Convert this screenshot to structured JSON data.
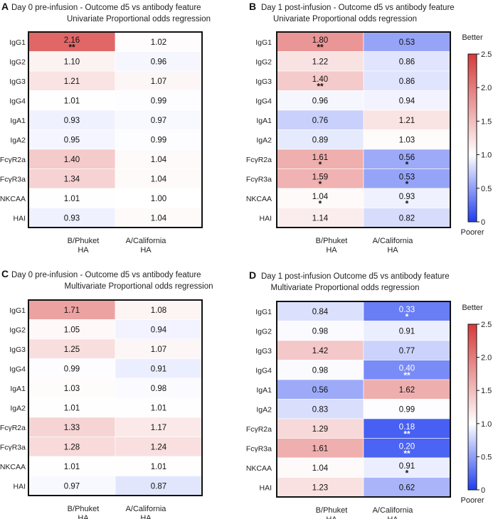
{
  "colors": {
    "low": "#1f3df0",
    "mid": "#ffffff",
    "high": "#d83a3a"
  },
  "chart_data": [
    {
      "type": "heatmap",
      "panel": "A",
      "title": "Day 0 pre-infusion - Outcome d5 vs antibody feature",
      "subtitle": "Univariate Proportional odds regression",
      "rows": [
        "IgG1",
        "IgG2",
        "IgG3",
        "IgG4",
        "IgA1",
        "IgA2",
        "FcγR2a",
        "FcγR3a",
        "NKCAA",
        "HAI"
      ],
      "columns": [
        "B/Phuket\nHA",
        "A/California\nHA"
      ],
      "values": [
        [
          2.16,
          1.02
        ],
        [
          1.1,
          0.96
        ],
        [
          1.21,
          1.07
        ],
        [
          1.01,
          0.99
        ],
        [
          0.93,
          0.97
        ],
        [
          0.95,
          0.99
        ],
        [
          1.4,
          1.04
        ],
        [
          1.34,
          1.04
        ],
        [
          1.01,
          1.0
        ],
        [
          0.93,
          1.04
        ]
      ],
      "value_labels": [
        [
          "2.16",
          "1.02"
        ],
        [
          "1.10",
          "0.96"
        ],
        [
          "1.21",
          "1.07"
        ],
        [
          "1.01",
          "0.99"
        ],
        [
          "0.93",
          "0.97"
        ],
        [
          "0.95",
          "0.99"
        ],
        [
          "1.40",
          "1.04"
        ],
        [
          "1.34",
          "1.04"
        ],
        [
          "1.01",
          "1.00"
        ],
        [
          "0.93",
          "1.04"
        ]
      ],
      "significance": [
        [
          "**",
          ""
        ],
        [
          "",
          ""
        ],
        [
          "",
          ""
        ],
        [
          "",
          ""
        ],
        [
          "",
          ""
        ],
        [
          "",
          ""
        ],
        [
          "",
          ""
        ],
        [
          "",
          ""
        ],
        [
          "",
          ""
        ],
        [
          "",
          ""
        ]
      ],
      "value_range": [
        0,
        2.5
      ]
    },
    {
      "type": "heatmap",
      "panel": "B",
      "title": "Day 1 post-infusion - Outcome d5 vs antibody feature",
      "subtitle": "Univariate Proportional odds regression",
      "rows": [
        "IgG1",
        "IgG2",
        "IgG3",
        "IgG4",
        "IgA1",
        "IgA2",
        "FcγR2a",
        "FcγR3a",
        "NKCAA",
        "HAI"
      ],
      "columns": [
        "B/Phuket\nHA",
        "A/California\nHA"
      ],
      "values": [
        [
          1.8,
          0.53
        ],
        [
          1.22,
          0.86
        ],
        [
          1.4,
          0.86
        ],
        [
          0.96,
          0.94
        ],
        [
          0.76,
          1.21
        ],
        [
          0.89,
          1.03
        ],
        [
          1.61,
          0.56
        ],
        [
          1.59,
          0.53
        ],
        [
          1.04,
          0.93
        ],
        [
          1.14,
          0.82
        ]
      ],
      "value_labels": [
        [
          "1.80",
          "0.53"
        ],
        [
          "1.22",
          "0.86"
        ],
        [
          "1.40",
          "0.86"
        ],
        [
          "0.96",
          "0.94"
        ],
        [
          "0.76",
          "1.21"
        ],
        [
          "0.89",
          "1.03"
        ],
        [
          "1.61",
          "0.56"
        ],
        [
          "1.59",
          "0.53"
        ],
        [
          "1.04",
          "0.93"
        ],
        [
          "1.14",
          "0.82"
        ]
      ],
      "significance": [
        [
          "**",
          ""
        ],
        [
          "",
          ""
        ],
        [
          "**",
          ""
        ],
        [
          "",
          ""
        ],
        [
          "",
          ""
        ],
        [
          "",
          ""
        ],
        [
          "*",
          "*"
        ],
        [
          "*",
          "*"
        ],
        [
          "*",
          "*"
        ],
        [
          "",
          ""
        ]
      ],
      "value_range": [
        0,
        2.5
      ]
    },
    {
      "type": "heatmap",
      "panel": "C",
      "title": "Day 0 pre-infusion - Outcome d5 vs antibody feature",
      "subtitle": "Multivariate Proportional odds regression",
      "rows": [
        "IgG1",
        "IgG2",
        "IgG3",
        "IgG4",
        "IgA1",
        "IgA2",
        "FcγR2a",
        "FcγR3a",
        "NKCAA",
        "HAI"
      ],
      "columns": [
        "B/Phuket\nHA",
        "A/California\nHA"
      ],
      "values": [
        [
          1.71,
          1.08
        ],
        [
          1.05,
          0.94
        ],
        [
          1.25,
          1.07
        ],
        [
          0.99,
          0.91
        ],
        [
          1.03,
          0.98
        ],
        [
          1.01,
          1.01
        ],
        [
          1.33,
          1.17
        ],
        [
          1.28,
          1.24
        ],
        [
          1.01,
          1.01
        ],
        [
          0.97,
          0.87
        ]
      ],
      "value_labels": [
        [
          "1.71",
          "1.08"
        ],
        [
          "1.05",
          "0.94"
        ],
        [
          "1.25",
          "1.07"
        ],
        [
          "0.99",
          "0.91"
        ],
        [
          "1.03",
          "0.98"
        ],
        [
          "1.01",
          "1.01"
        ],
        [
          "1.33",
          "1.17"
        ],
        [
          "1.28",
          "1.24"
        ],
        [
          "1.01",
          "1.01"
        ],
        [
          "0.97",
          "0.87"
        ]
      ],
      "significance": [
        [
          "",
          ""
        ],
        [
          "",
          ""
        ],
        [
          "",
          ""
        ],
        [
          "",
          ""
        ],
        [
          "",
          ""
        ],
        [
          "",
          ""
        ],
        [
          "",
          ""
        ],
        [
          "",
          ""
        ],
        [
          "",
          ""
        ],
        [
          "",
          ""
        ]
      ],
      "value_range": [
        0,
        2.5
      ]
    },
    {
      "type": "heatmap",
      "panel": "D",
      "title": "Day 1 post-infusion Outcome d5 vs antibody feature",
      "subtitle": "Multivariate Proportional odds regression",
      "rows": [
        "IgG1",
        "IgG2",
        "IgG3",
        "IgG4",
        "IgA1",
        "IgA2",
        "FcγR2a",
        "FcγR3a",
        "NKCAA",
        "HAI"
      ],
      "columns": [
        "B/Phuket\nHA",
        "A/California\nHA"
      ],
      "values": [
        [
          0.84,
          0.33
        ],
        [
          0.98,
          0.91
        ],
        [
          1.42,
          0.77
        ],
        [
          0.98,
          0.4
        ],
        [
          0.56,
          1.62
        ],
        [
          0.83,
          0.99
        ],
        [
          1.29,
          0.18
        ],
        [
          1.61,
          0.2
        ],
        [
          1.04,
          0.91
        ],
        [
          1.23,
          0.62
        ]
      ],
      "value_labels": [
        [
          "0.84",
          "0.33"
        ],
        [
          "0.98",
          "0.91"
        ],
        [
          "1.42",
          "0.77"
        ],
        [
          "0.98",
          "0.40"
        ],
        [
          "0.56",
          "1.62"
        ],
        [
          "0.83",
          "0.99"
        ],
        [
          "1.29",
          "0.18"
        ],
        [
          "1.61",
          "0.20"
        ],
        [
          "1.04",
          "0.91"
        ],
        [
          "1.23",
          "0.62"
        ]
      ],
      "significance": [
        [
          "",
          "*"
        ],
        [
          "",
          ""
        ],
        [
          "",
          ""
        ],
        [
          "",
          "**"
        ],
        [
          "",
          ""
        ],
        [
          "",
          ""
        ],
        [
          "",
          "**"
        ],
        [
          "",
          "**"
        ],
        [
          "",
          "*"
        ],
        [
          "",
          ""
        ]
      ],
      "value_range": [
        0,
        2.5
      ]
    }
  ],
  "colorbar": {
    "top_label": "Better",
    "bottom_label": "Poorer",
    "ticks": [
      0,
      0.5,
      1.0,
      1.5,
      2.0,
      2.5
    ],
    "tick_labels": [
      "0",
      "0.5",
      "1.0",
      "1.5",
      "2.0",
      "2.5"
    ],
    "range": [
      0,
      2.5
    ]
  }
}
